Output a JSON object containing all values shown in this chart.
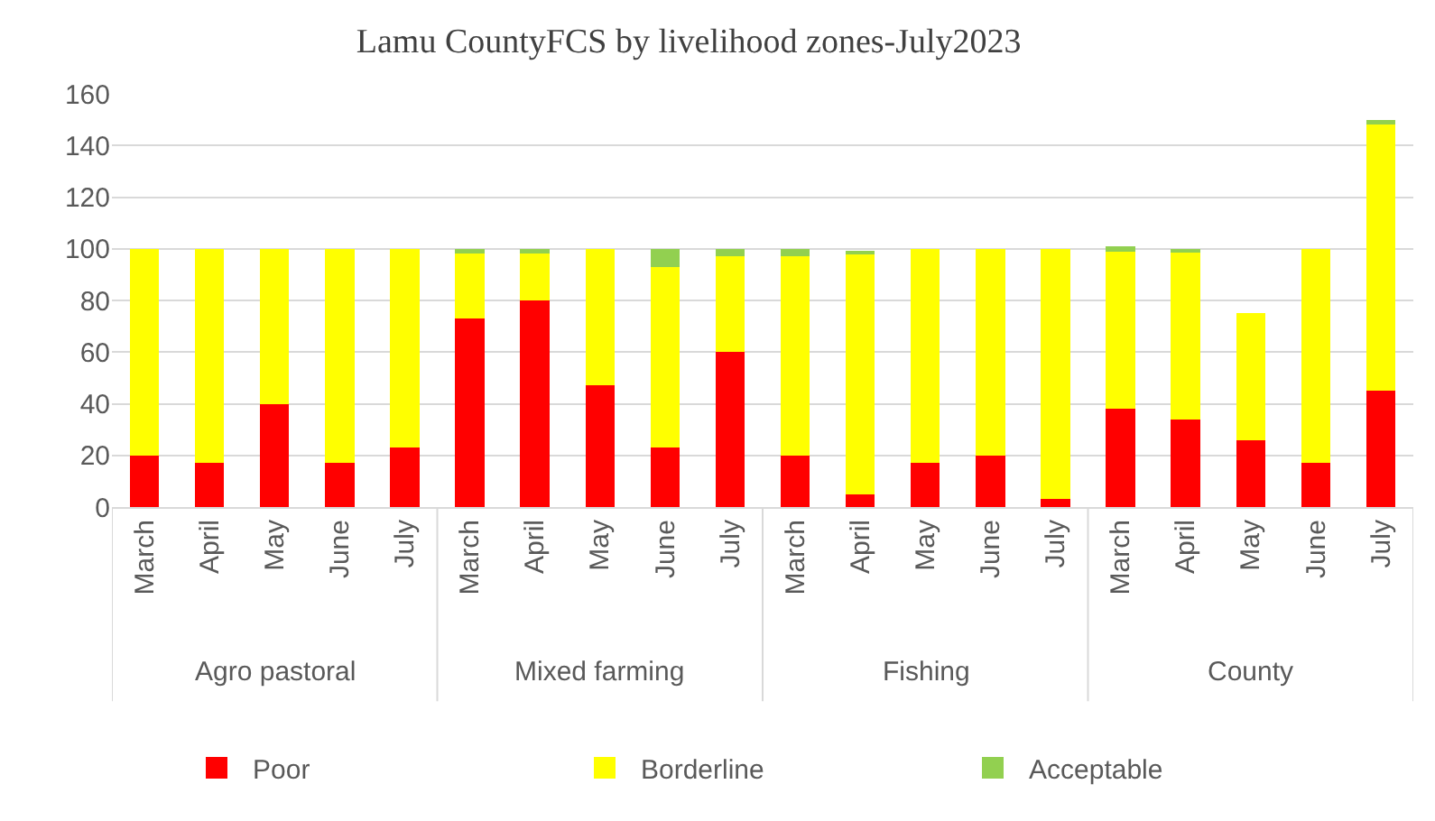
{
  "chart_data": {
    "type": "bar",
    "stacked": true,
    "title": "Lamu CountyFCS by livelihood zones-July2023",
    "categories": [
      "March",
      "April",
      "May",
      "June",
      "July",
      "March",
      "April",
      "May",
      "June",
      "July",
      "March",
      "April",
      "May",
      "June",
      "July",
      "March",
      "April",
      "May",
      "June",
      "July"
    ],
    "series": [
      {
        "name": "Poor",
        "color": "#ff0000",
        "values": [
          20,
          17,
          40,
          17,
          23,
          73,
          80,
          47,
          23,
          60,
          20,
          5,
          17,
          20,
          3,
          38,
          34,
          26,
          17,
          45
        ]
      },
      {
        "name": "Borderline",
        "color": "#ffff00",
        "values": [
          80,
          83,
          60,
          83,
          77,
          25,
          18,
          53,
          70,
          37,
          77,
          93,
          83,
          80,
          97,
          61,
          65,
          49,
          83,
          103
        ]
      },
      {
        "name": "Acceptable",
        "color": "#92d050",
        "values": [
          0,
          0,
          0,
          0,
          0,
          2,
          2,
          0,
          7,
          3,
          3,
          1,
          0,
          0,
          0,
          2,
          1,
          0,
          0,
          2
        ]
      }
    ],
    "annotations": [
      "Agro pastoral",
      "Mixed farming",
      "Fishing",
      "County"
    ],
    "ylim": [
      0,
      160
    ],
    "yticks": [
      0,
      20,
      40,
      60,
      80,
      100,
      120,
      140,
      160
    ],
    "grid": "y",
    "legend": "bottom"
  }
}
